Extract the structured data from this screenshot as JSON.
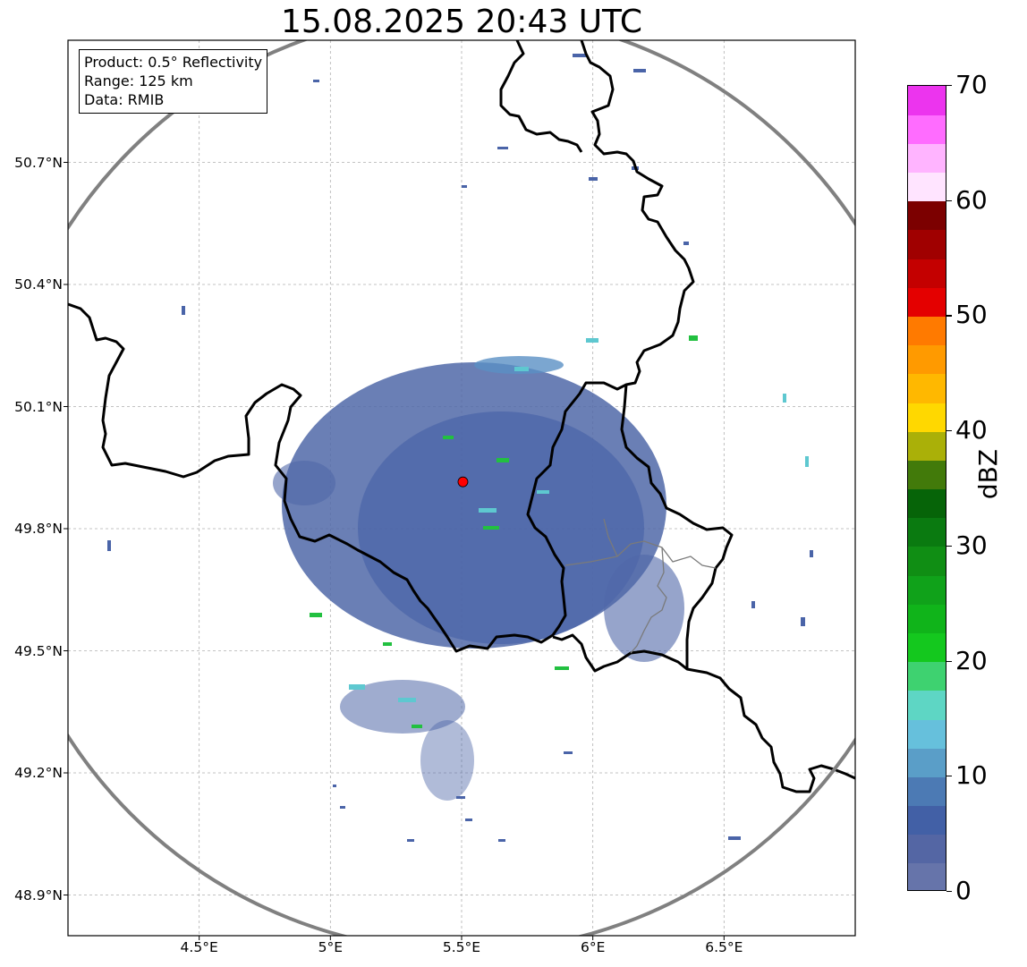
{
  "title": "15.08.2025 20:43 UTC",
  "info_box": {
    "product": "Product: 0.5° Reflectivity",
    "range": "Range: 125 km",
    "data": "Data: RMIB"
  },
  "map": {
    "lon_range": [
      4.0,
      7.0
    ],
    "lat_range": [
      48.8,
      51.0
    ],
    "radar_site": {
      "lon": 5.505,
      "lat": 49.915
    },
    "range_ring_km": 125,
    "grid": true,
    "lat_ticks": [
      {
        "value": 50.7,
        "label": "50.7°N"
      },
      {
        "value": 50.4,
        "label": "50.4°N"
      },
      {
        "value": 50.1,
        "label": "50.1°N"
      },
      {
        "value": 49.8,
        "label": "49.8°N"
      },
      {
        "value": 49.5,
        "label": "49.5°N"
      },
      {
        "value": 49.2,
        "label": "49.2°N"
      },
      {
        "value": 48.9,
        "label": "48.9°N"
      }
    ],
    "lon_ticks": [
      {
        "value": 4.5,
        "label": "4.5°E"
      },
      {
        "value": 5.0,
        "label": "5°E"
      },
      {
        "value": 5.5,
        "label": "5.5°E"
      },
      {
        "value": 6.0,
        "label": "6°E"
      },
      {
        "value": 6.5,
        "label": "6.5°E"
      }
    ],
    "colors": {
      "border": "#000000",
      "ring": "#808080",
      "grid": "#b0b0b0",
      "site": "#ff0000",
      "weak_echo": "#5068a8"
    }
  },
  "colorbar": {
    "label": "dBZ",
    "min": 0,
    "max": 70,
    "ticks": [
      "0",
      "10",
      "20",
      "30",
      "40",
      "50",
      "60",
      "70"
    ],
    "tick_values": [
      0,
      10,
      20,
      30,
      40,
      50,
      60,
      70
    ],
    "colors": [
      "#6674aa",
      "#5466a4",
      "#4260a6",
      "#4c7ab4",
      "#5a9ec8",
      "#66c0dc",
      "#5ed6c4",
      "#3ed270",
      "#14c81e",
      "#10b41a",
      "#10a21a",
      "#108e14",
      "#0a7a10",
      "#066408",
      "#427a0a",
      "#aab008",
      "#ffd800",
      "#ffb800",
      "#ff9a00",
      "#ff7a00",
      "#e40000",
      "#c40000",
      "#a00000",
      "#7c0000",
      "#ffe4ff",
      "#ffb4ff",
      "#ff6cff",
      "#ec34ee"
    ]
  }
}
